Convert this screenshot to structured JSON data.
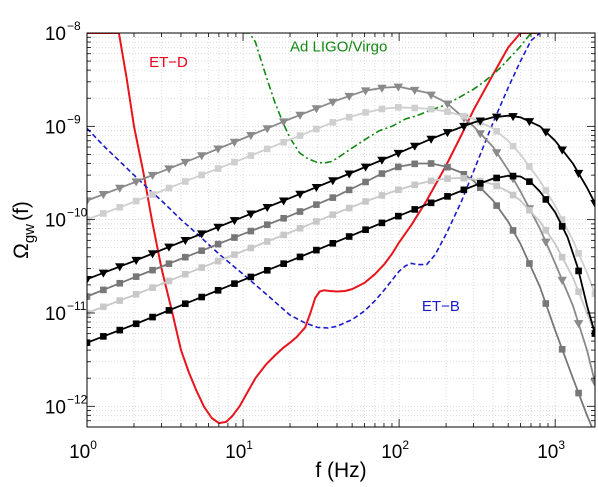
{
  "chart_data": {
    "type": "line",
    "title": "",
    "xlabel": "f (Hz)",
    "ylabel_main": "Ω",
    "ylabel_sub": "gw",
    "ylabel_suffix": "(f)",
    "xscale": "log",
    "yscale": "log",
    "xlim": [
      1,
      1800
    ],
    "ylim": [
      6e-13,
      1e-08
    ],
    "grid": true,
    "xticks": [
      {
        "value": 1,
        "base": "10",
        "exp": "0"
      },
      {
        "value": 10,
        "base": "10",
        "exp": "1"
      },
      {
        "value": 100,
        "base": "10",
        "exp": "2"
      },
      {
        "value": 1000,
        "base": "10",
        "exp": "3"
      }
    ],
    "yticks": [
      {
        "value": 1e-12,
        "base": "10",
        "exp": "−12"
      },
      {
        "value": 1e-11,
        "base": "10",
        "exp": "−11"
      },
      {
        "value": 1e-10,
        "base": "10",
        "exp": "−10"
      },
      {
        "value": 1e-09,
        "base": "10",
        "exp": "−9"
      },
      {
        "value": 1e-08,
        "base": "10",
        "exp": "−8"
      }
    ],
    "annotations": [
      {
        "text": "ET−D",
        "color": "#e8001c",
        "x": 2.5,
        "y": 4.3e-09
      },
      {
        "text": "Ad LIGO/Virgo",
        "color": "#118811",
        "x": 20,
        "y": 6.3e-09
      },
      {
        "text": "ET−B",
        "color": "#1a1acc",
        "x": 140,
        "y": 1.05e-11
      }
    ],
    "series": [
      {
        "label": "ET−D",
        "color": "#e8151c",
        "dash": "solid",
        "width": 2,
        "marker": "none",
        "x": [
          1.0,
          1.1,
          1.2,
          1.3,
          1.45,
          1.6,
          1.8,
          2.0,
          2.3,
          2.6,
          3.0,
          3.5,
          4.0,
          4.5,
          5.0,
          5.6,
          6.3,
          7.0,
          7.8,
          8.5,
          9.5,
          10.5,
          12,
          14,
          16,
          18,
          20,
          22,
          25,
          27,
          29,
          31,
          33,
          36,
          40,
          45,
          50,
          60,
          70,
          80,
          90,
          100,
          120,
          150,
          200,
          250,
          300,
          400,
          500,
          600,
          700,
          800
        ],
        "y": [
          1e-08,
          1e-08,
          1e-08,
          1e-08,
          1e-08,
          1e-08,
          3.2e-09,
          1e-09,
          3.2e-10,
          1e-10,
          3e-11,
          1.05e-11,
          4e-12,
          2.3e-12,
          1.5e-12,
          1e-12,
          7.5e-13,
          6.6e-13,
          6.8e-13,
          7.8e-13,
          1e-12,
          1.35e-12,
          2e-12,
          2.8e-12,
          3.5e-12,
          4.2e-12,
          4.8e-12,
          5.5e-12,
          7e-12,
          1e-11,
          1.45e-11,
          1.7e-11,
          1.75e-11,
          1.72e-11,
          1.7e-11,
          1.72e-11,
          1.8e-11,
          2.1e-11,
          2.6e-11,
          3.3e-11,
          4.3e-11,
          5.7e-11,
          8.8e-11,
          1.6e-10,
          3.8e-10,
          8e-10,
          1.5e-09,
          3.6e-09,
          7e-09,
          1e-08,
          1e-08,
          1e-08
        ]
      },
      {
        "label": "Ad LIGO/Virgo",
        "color": "#118811",
        "dash": "dashdot",
        "width": 1.6,
        "marker": "none",
        "x": [
          10,
          11,
          12,
          13,
          14,
          16,
          18,
          20,
          23,
          26,
          30,
          33,
          37,
          42,
          48,
          55,
          65,
          75,
          90,
          110,
          130,
          160,
          200,
          250,
          300,
          350,
          400,
          450,
          500,
          600,
          700,
          800
        ],
        "y": [
          1e-08,
          1e-08,
          8e-09,
          5.2e-09,
          3.5e-09,
          1.8e-09,
          1.1e-09,
          7.5e-10,
          5.2e-10,
          4.5e-10,
          4.1e-10,
          4.05e-10,
          4.2e-10,
          4.8e-10,
          5.6e-10,
          6.5e-10,
          7.8e-10,
          9e-10,
          1e-09,
          1.2e-09,
          1.3e-09,
          1.5e-09,
          1.7e-09,
          2.1e-09,
          2.5e-09,
          3e-09,
          3.6e-09,
          4.3e-09,
          5.2e-09,
          7.2e-09,
          1e-08,
          1e-08
        ]
      },
      {
        "label": "ET−B",
        "color": "#1a1acc",
        "dash": "dashed",
        "width": 1.6,
        "marker": "none",
        "x": [
          1.0,
          1.3,
          1.6,
          2.0,
          2.5,
          3.0,
          4.0,
          5.0,
          7.0,
          10,
          14,
          20,
          25,
          30,
          35,
          40,
          50,
          60,
          70,
          80,
          90,
          100,
          110,
          120,
          130,
          150,
          170,
          200,
          250,
          300,
          350,
          400,
          500,
          600,
          700,
          800
        ],
        "y": [
          9.5e-10,
          6e-10,
          4.3e-10,
          3e-10,
          2.1e-10,
          1.6e-10,
          1e-10,
          7.2e-11,
          4.3e-11,
          2.6e-11,
          1.6e-11,
          9.5e-12,
          7.8e-12,
          7e-12,
          6.9e-12,
          7.2e-12,
          8.5e-12,
          1.05e-11,
          1.35e-11,
          1.75e-11,
          2.25e-11,
          2.8e-11,
          3.2e-11,
          3.4e-11,
          3.3e-11,
          3.3e-11,
          4.2e-11,
          7e-11,
          1.55e-10,
          3.3e-10,
          6.3e-10,
          1.1e-09,
          2.6e-09,
          5e-09,
          8.3e-09,
          1e-08
        ]
      },
      {
        "label": "",
        "color": "#8a8a8a",
        "dash": "solid",
        "width": 1.8,
        "marker": "tri",
        "x": [
          1.0,
          2.0,
          5.0,
          10,
          20,
          40,
          60,
          80,
          100,
          150,
          200,
          300,
          400,
          500,
          600,
          800,
          1000,
          1300,
          1600,
          1800
        ],
        "y": [
          1.6e-10,
          2.5e-10,
          4.6e-10,
          7.4e-10,
          1.2e-09,
          1.9e-09,
          2.4e-09,
          2.6e-09,
          2.65e-09,
          2.3e-09,
          1.8e-09,
          1e-09,
          6e-10,
          3.4e-10,
          2e-10,
          8e-11,
          3.4e-11,
          1.2e-11,
          4e-12,
          1.8e-12
        ]
      },
      {
        "label": "",
        "color": "#cfcfcf",
        "dash": "solid",
        "width": 1.8,
        "marker": "square",
        "x": [
          1.0,
          2.0,
          5.0,
          10,
          20,
          40,
          60,
          80,
          100,
          150,
          200,
          300,
          400,
          500,
          600,
          800,
          1000,
          1300,
          1600,
          1800
        ],
        "y": [
          1e-10,
          1.55e-10,
          2.85e-10,
          4.5e-10,
          7.2e-10,
          1.15e-09,
          1.4e-09,
          1.55e-09,
          1.6e-09,
          1.55e-09,
          1.45e-09,
          1.2e-09,
          9.5e-10,
          7e-10,
          5e-10,
          2.6e-10,
          1.4e-10,
          6e-11,
          2.7e-11,
          1.6e-11
        ]
      },
      {
        "label": "",
        "color": "#000000",
        "dash": "solid",
        "width": 1.8,
        "marker": "tri",
        "x": [
          1.0,
          2.0,
          5.0,
          10,
          20,
          50,
          100,
          150,
          200,
          300,
          400,
          500,
          600,
          800,
          1000,
          1300,
          1600,
          1800
        ],
        "y": [
          2.3e-11,
          3.6e-11,
          6.7e-11,
          1.07e-10,
          1.7e-10,
          3.2e-10,
          5.2e-10,
          7e-10,
          8.5e-10,
          1.1e-09,
          1.25e-09,
          1.3e-09,
          1.25e-09,
          1e-09,
          7e-10,
          4e-10,
          2.2e-10,
          1.5e-10
        ]
      },
      {
        "label": "",
        "color": "#777777",
        "dash": "solid",
        "width": 1.8,
        "marker": "square",
        "x": [
          1.0,
          2.0,
          5.0,
          10,
          20,
          40,
          60,
          80,
          100,
          130,
          160,
          200,
          250,
          300,
          400,
          500,
          600,
          800,
          1000,
          1300,
          1600,
          1800
        ],
        "y": [
          1.5e-11,
          2.4e-11,
          4.4e-11,
          7e-11,
          1.1e-10,
          1.8e-10,
          2.5e-10,
          3.2e-10,
          3.7e-10,
          4e-10,
          4e-10,
          3.7e-10,
          3.2e-10,
          2.6e-10,
          1.6e-10,
          9.5e-11,
          5.5e-11,
          1.9e-11,
          6.5e-12,
          2e-12,
          8e-13,
          5e-13
        ]
      },
      {
        "label": "",
        "color": "#c8c8c8",
        "dash": "solid",
        "width": 1.8,
        "marker": "square",
        "x": [
          1.0,
          2.0,
          5.0,
          10,
          20,
          40,
          60,
          80,
          100,
          130,
          160,
          200,
          250,
          300,
          400,
          500,
          600,
          800,
          1000,
          1300,
          1600,
          1800
        ],
        "y": [
          1e-11,
          1.55e-11,
          2.9e-11,
          4.6e-11,
          7.3e-11,
          1.18e-10,
          1.55e-10,
          1.85e-10,
          2.1e-10,
          2.4e-10,
          2.6e-10,
          2.75e-10,
          2.8e-10,
          2.7e-10,
          2.4e-10,
          2e-10,
          1.6e-10,
          9.5e-11,
          5.5e-11,
          2.4e-11,
          1e-11,
          6e-12
        ]
      },
      {
        "label": "",
        "color": "#000000",
        "dash": "solid",
        "width": 1.8,
        "marker": "square",
        "x": [
          1.0,
          2.0,
          5.0,
          10,
          20,
          50,
          100,
          150,
          200,
          300,
          400,
          500,
          600,
          700,
          800,
          1000,
          1200,
          1400,
          1600,
          1800
        ],
        "y": [
          4.8e-12,
          7.5e-12,
          1.4e-11,
          2.25e-11,
          3.6e-11,
          6.8e-11,
          1.1e-10,
          1.45e-10,
          1.75e-10,
          2.3e-10,
          2.75e-10,
          2.95e-10,
          2.9e-10,
          2.5e-10,
          2e-10,
          1.2e-10,
          6.5e-11,
          3e-11,
          1.2e-11,
          6e-12
        ]
      }
    ]
  }
}
